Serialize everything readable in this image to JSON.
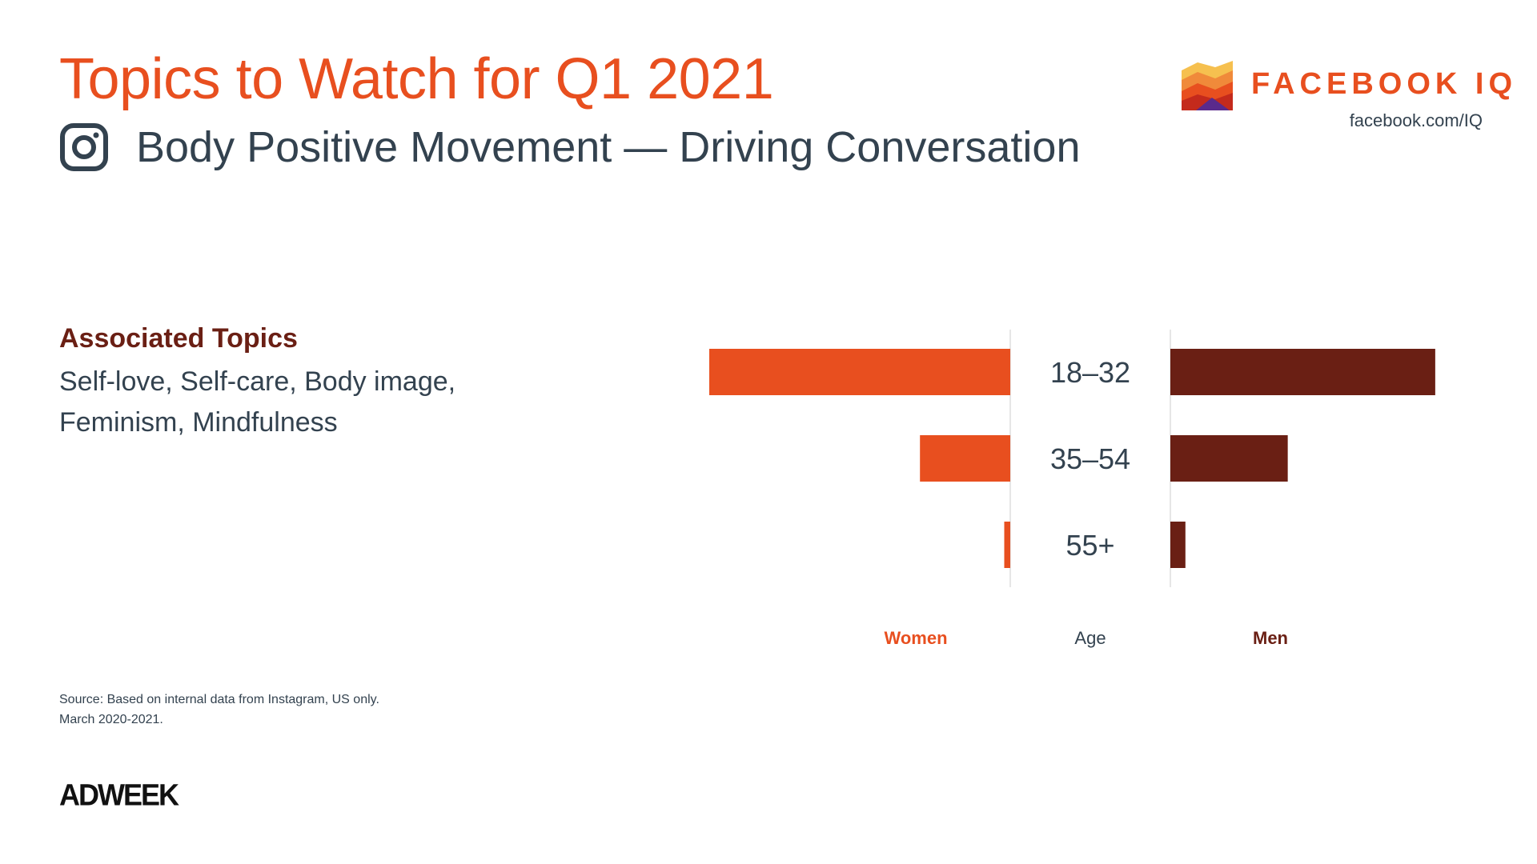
{
  "header": {
    "title": "Topics to Watch for Q1 2021",
    "subtitle": "Body Positive Movement — Driving Conversation",
    "platform_icon": "instagram-icon"
  },
  "brand": {
    "name": "FACEBOOK IQ",
    "url": "facebook.com/IQ",
    "logo_icon": "facebook-iq-logo-icon"
  },
  "topics": {
    "heading": "Associated Topics",
    "text": "Self-love, Self-care, Body image, Feminism, Mindfulness"
  },
  "source": {
    "line1": "Source: Based on internal data from Instagram, US only.",
    "line2": "March 2020-2021."
  },
  "footer": {
    "logo_text": "ADWEEK"
  },
  "colors": {
    "accent": "#e84f1f",
    "men": "#6a1f14",
    "text": "#33424f",
    "divider": "#e6e6e6"
  },
  "chart_data": {
    "type": "bar",
    "orientation": "horizontal-butterfly",
    "categories": [
      "18–32",
      "35–54",
      "55+"
    ],
    "series": [
      {
        "name": "Women",
        "values": [
          100,
          30,
          2
        ]
      },
      {
        "name": "Men",
        "values": [
          88,
          39,
          5
        ]
      }
    ],
    "center_label": "Age",
    "xlim": [
      0,
      100
    ],
    "grid": false
  }
}
